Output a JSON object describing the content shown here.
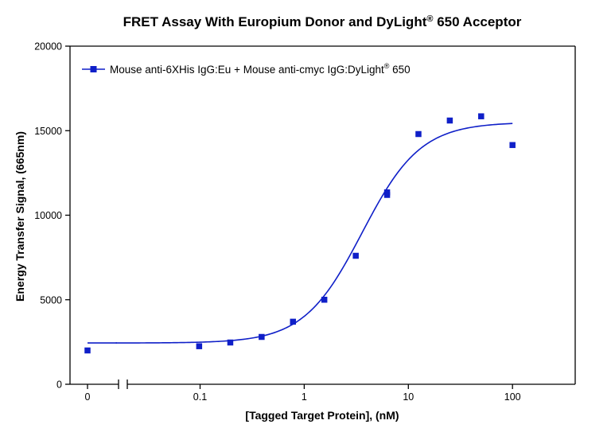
{
  "chart_data": {
    "type": "scatter",
    "title": "FRET Assay With Europium Donor and DyLight",
    "title_superscript": "®",
    "title_suffix": " 650 Acceptor",
    "xlabel": "[Tagged Target Protein], (nM)",
    "ylabel": "Energy Transfer Signal, (665nm)",
    "x_scale": "log",
    "x_axis_break": true,
    "xlim": [
      0.02,
      400
    ],
    "ylim": [
      0,
      20000
    ],
    "x_ticks": [
      {
        "value": 0,
        "label": "0"
      },
      {
        "value": 0.1,
        "label": "0.1"
      },
      {
        "value": 1,
        "label": "1"
      },
      {
        "value": 10,
        "label": "10"
      },
      {
        "value": 100,
        "label": "100"
      }
    ],
    "y_ticks": [
      {
        "value": 0,
        "label": "0"
      },
      {
        "value": 5000,
        "label": "5000"
      },
      {
        "value": 10000,
        "label": "10000"
      },
      {
        "value": 15000,
        "label": "15000"
      },
      {
        "value": 20000,
        "label": "20000"
      }
    ],
    "legend": {
      "position": "top-left",
      "label": "Mouse anti-6XHis IgG:Eu + Mouse anti-cmyc IgG:DyLight",
      "label_superscript": "®",
      "label_suffix": " 650"
    },
    "series": [
      {
        "name": "Mouse anti-6XHis IgG:Eu + Mouse anti-cmyc IgG:DyLight® 650",
        "color": "#0f1fc8",
        "marker": "square",
        "zero_point": {
          "x": 0,
          "y": 2000
        },
        "points": [
          {
            "x": 0.098,
            "y": 2250
          },
          {
            "x": 0.195,
            "y": 2470
          },
          {
            "x": 0.39,
            "y": 2800
          },
          {
            "x": 0.78,
            "y": 3700
          },
          {
            "x": 1.56,
            "y": 5000
          },
          {
            "x": 3.125,
            "y": 7600
          },
          {
            "x": 6.25,
            "y": 11200
          },
          {
            "x": 6.25,
            "y": 11350
          },
          {
            "x": 12.5,
            "y": 14800
          },
          {
            "x": 25,
            "y": 15600
          },
          {
            "x": 50,
            "y": 15850
          },
          {
            "x": 100,
            "y": 14150
          }
        ],
        "fit": {
          "model": "4PL",
          "bottom": 2440,
          "top": 15500,
          "ec50": 3.6,
          "hill": 1.55,
          "x_range": [
            0.0155,
            100
          ]
        }
      }
    ]
  }
}
